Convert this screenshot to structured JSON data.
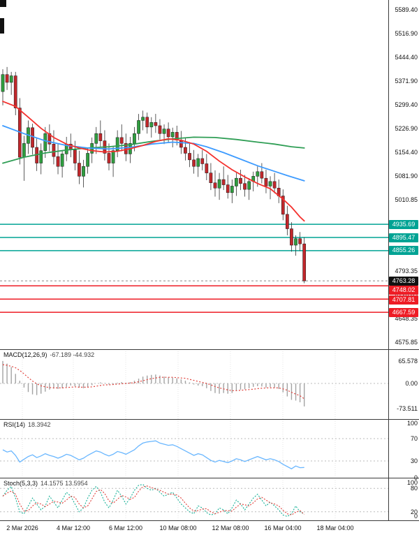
{
  "colors": {
    "bull": "#2f9e3f",
    "bear": "#c1272b",
    "wick": "#333333",
    "ma_fast": "#f4312e",
    "ma_mid": "#3d9bff",
    "ma_slow": "#2f9e55",
    "resistance": "#00a394",
    "support": "#ee1c25",
    "current": "#111111",
    "macd_hist": "#a3a3a3",
    "macd_signal": "#e0403a",
    "rsi": "#6ab7ff",
    "stoch_k": "#17b198",
    "stoch_d": "#e0403a"
  },
  "chart_data": {
    "type": "candlestick",
    "x_labels": [
      "2 Mar 2026",
      "4 Mar 12:00",
      "6 Mar 12:00",
      "10 Mar 08:00",
      "12 Mar 08:00",
      "16 Mar 04:00",
      "18 Mar 04:00"
    ],
    "price_axis_ticks": [
      "5589.40",
      "5516.90",
      "5444.40",
      "5371.90",
      "5299.40",
      "5226.90",
      "5154.40",
      "5081.90",
      "5010.85",
      "4793.35",
      "4720.85",
      "4648.35",
      "4575.85"
    ],
    "price_range": [
      4555,
      5619
    ],
    "current_price": 4763.28,
    "levels": [
      {
        "label": "4935.69",
        "price": 4935.69,
        "kind": "resistance"
      },
      {
        "label": "4895.47",
        "price": 4895.47,
        "kind": "resistance"
      },
      {
        "label": "4855.26",
        "price": 4855.26,
        "kind": "resistance"
      },
      {
        "label": "4763.28",
        "price": 4763.28,
        "kind": "current"
      },
      {
        "label": "4748.02",
        "price": 4748.02,
        "kind": "support"
      },
      {
        "label": "4707.81",
        "price": 4707.81,
        "kind": "support"
      },
      {
        "label": "4667.59",
        "price": 4667.59,
        "kind": "support"
      }
    ],
    "candles": [
      [
        5340,
        5408,
        5298,
        5392
      ],
      [
        5392,
        5415,
        5345,
        5368
      ],
      [
        5368,
        5400,
        5330,
        5388
      ],
      [
        5388,
        5400,
        5268,
        5290
      ],
      [
        5290,
        5320,
        5118,
        5140
      ],
      [
        5140,
        5205,
        5068,
        5182
      ],
      [
        5182,
        5252,
        5150,
        5230
      ],
      [
        5230,
        5242,
        5148,
        5170
      ],
      [
        5170,
        5200,
        5098,
        5122
      ],
      [
        5122,
        5182,
        5088,
        5160
      ],
      [
        5160,
        5232,
        5138,
        5212
      ],
      [
        5212,
        5240,
        5158,
        5180
      ],
      [
        5180,
        5222,
        5118,
        5142
      ],
      [
        5142,
        5180,
        5088,
        5112
      ],
      [
        5112,
        5160,
        5078,
        5150
      ],
      [
        5150,
        5202,
        5128,
        5180
      ],
      [
        5180,
        5212,
        5140,
        5162
      ],
      [
        5162,
        5190,
        5100,
        5122
      ],
      [
        5122,
        5160,
        5058,
        5082
      ],
      [
        5082,
        5132,
        5048,
        5112
      ],
      [
        5112,
        5170,
        5090,
        5152
      ],
      [
        5152,
        5200,
        5122,
        5182
      ],
      [
        5182,
        5232,
        5150,
        5212
      ],
      [
        5212,
        5252,
        5170,
        5190
      ],
      [
        5190,
        5222,
        5130,
        5152
      ],
      [
        5152,
        5182,
        5100,
        5122
      ],
      [
        5122,
        5172,
        5080,
        5160
      ],
      [
        5160,
        5222,
        5140,
        5200
      ],
      [
        5200,
        5240,
        5158,
        5182
      ],
      [
        5182,
        5212,
        5128,
        5150
      ],
      [
        5150,
        5202,
        5122,
        5182
      ],
      [
        5182,
        5232,
        5158,
        5212
      ],
      [
        5212,
        5272,
        5192,
        5252
      ],
      [
        5252,
        5282,
        5222,
        5262
      ],
      [
        5262,
        5276,
        5212,
        5232
      ],
      [
        5232,
        5262,
        5200,
        5246
      ],
      [
        5246,
        5272,
        5214,
        5236
      ],
      [
        5236,
        5256,
        5194,
        5212
      ],
      [
        5212,
        5240,
        5180,
        5226
      ],
      [
        5226,
        5246,
        5186,
        5202
      ],
      [
        5202,
        5230,
        5170,
        5216
      ],
      [
        5216,
        5236,
        5176,
        5192
      ],
      [
        5192,
        5220,
        5150,
        5170
      ],
      [
        5170,
        5200,
        5130,
        5152
      ],
      [
        5152,
        5186,
        5110,
        5132
      ],
      [
        5132,
        5162,
        5090,
        5112
      ],
      [
        5112,
        5150,
        5080,
        5136
      ],
      [
        5136,
        5162,
        5100,
        5120
      ],
      [
        5120,
        5150,
        5070,
        5092
      ],
      [
        5092,
        5122,
        5040,
        5062
      ],
      [
        5062,
        5100,
        5020,
        5046
      ],
      [
        5046,
        5092,
        5010,
        5072
      ],
      [
        5072,
        5112,
        5040,
        5056
      ],
      [
        5056,
        5086,
        5014,
        5032
      ],
      [
        5032,
        5072,
        5000,
        5052
      ],
      [
        5052,
        5092,
        5022,
        5076
      ],
      [
        5076,
        5102,
        5040,
        5060
      ],
      [
        5060,
        5086,
        5020,
        5042
      ],
      [
        5042,
        5076,
        5010,
        5066
      ],
      [
        5066,
        5096,
        5036,
        5082
      ],
      [
        5082,
        5112,
        5050,
        5096
      ],
      [
        5096,
        5122,
        5060,
        5076
      ],
      [
        5076,
        5102,
        5030,
        5052
      ],
      [
        5052,
        5082,
        5012,
        5066
      ],
      [
        5066,
        5092,
        5030,
        5046
      ],
      [
        5046,
        5072,
        5000,
        5022
      ],
      [
        5022,
        5042,
        4948,
        4966
      ],
      [
        4966,
        4992,
        4902,
        4922
      ],
      [
        4922,
        4942,
        4852,
        4872
      ],
      [
        4872,
        4902,
        4840,
        4892
      ],
      [
        4892,
        4912,
        4854,
        4876
      ],
      [
        4876,
        4896,
        4756,
        4763.28
      ]
    ],
    "ma_fast": [
      [
        0,
        5310
      ],
      [
        3,
        5295
      ],
      [
        6,
        5262
      ],
      [
        9,
        5228
      ],
      [
        12,
        5200
      ],
      [
        15,
        5180
      ],
      [
        18,
        5168
      ],
      [
        21,
        5160
      ],
      [
        24,
        5156
      ],
      [
        27,
        5158
      ],
      [
        30,
        5166
      ],
      [
        33,
        5176
      ],
      [
        36,
        5188
      ],
      [
        39,
        5196
      ],
      [
        42,
        5192
      ],
      [
        45,
        5180
      ],
      [
        48,
        5158
      ],
      [
        51,
        5128
      ],
      [
        54,
        5102
      ],
      [
        57,
        5080
      ],
      [
        60,
        5060
      ],
      [
        63,
        5044
      ],
      [
        66,
        5012
      ],
      [
        68,
        4988
      ],
      [
        70,
        4958
      ],
      [
        71,
        4946
      ]
    ],
    "ma_mid": [
      [
        0,
        5236
      ],
      [
        5,
        5212
      ],
      [
        10,
        5190
      ],
      [
        15,
        5176
      ],
      [
        20,
        5168
      ],
      [
        25,
        5165
      ],
      [
        30,
        5170
      ],
      [
        35,
        5180
      ],
      [
        40,
        5186
      ],
      [
        45,
        5182
      ],
      [
        48,
        5172
      ],
      [
        52,
        5154
      ],
      [
        56,
        5134
      ],
      [
        60,
        5114
      ],
      [
        64,
        5097
      ],
      [
        67,
        5084
      ],
      [
        70,
        5072
      ],
      [
        71,
        5068
      ]
    ],
    "ma_slow": [
      [
        0,
        5122
      ],
      [
        5,
        5140
      ],
      [
        10,
        5153
      ],
      [
        15,
        5162
      ],
      [
        20,
        5168
      ],
      [
        25,
        5172
      ],
      [
        30,
        5178
      ],
      [
        35,
        5188
      ],
      [
        40,
        5196
      ],
      [
        45,
        5201
      ],
      [
        50,
        5200
      ],
      [
        55,
        5194
      ],
      [
        60,
        5186
      ],
      [
        64,
        5180
      ],
      [
        68,
        5172
      ],
      [
        71,
        5168
      ]
    ],
    "macd": {
      "name": "MACD(12,26,9)",
      "values": "-67.189 -44.932",
      "axis_labels": [
        "65.578",
        "0.00",
        "-73.511"
      ],
      "axis_values": [
        65.578,
        0,
        -73.511
      ],
      "guides": [
        0
      ],
      "histogram": [
        65.6,
        58,
        48,
        28,
        8,
        -12,
        -25,
        -32,
        -34,
        -30,
        -24,
        -18,
        -15,
        -16,
        -14,
        -10,
        -6,
        -8,
        -12,
        -14,
        -10,
        -5,
        0,
        3,
        1,
        -3,
        -2,
        2,
        4,
        2,
        4,
        8,
        14,
        20,
        23,
        25,
        26,
        23,
        20,
        18,
        17,
        15,
        12,
        8,
        3,
        -3,
        -6,
        -8,
        -14,
        -22,
        -28,
        -30,
        -28,
        -30,
        -28,
        -22,
        -18,
        -17,
        -14,
        -10,
        -8,
        -9,
        -12,
        -11,
        -12,
        -16,
        -26,
        -38,
        -48,
        -50,
        -55,
        -67.2
      ],
      "signal": [
        55,
        53,
        50,
        46,
        38,
        28,
        17,
        7,
        -1,
        -7,
        -10,
        -12,
        -13,
        -13,
        -13,
        -12,
        -11,
        -10,
        -11,
        -11,
        -11,
        -10,
        -8,
        -6,
        -4,
        -4,
        -3,
        -2,
        -1,
        0,
        1,
        2,
        5,
        8,
        11,
        14,
        16,
        18,
        18,
        18,
        18,
        17,
        16,
        15,
        12,
        9,
        6,
        3,
        0,
        -4,
        -9,
        -13,
        -16,
        -19,
        -21,
        -21,
        -20,
        -19,
        -18,
        -17,
        -15,
        -14,
        -13,
        -13,
        -13,
        -13,
        -16,
        -20,
        -26,
        -31,
        -36,
        -44.9
      ]
    },
    "rsi": {
      "name": "RSI(14)",
      "values": "18.3942",
      "axis_labels": [
        "100",
        "70",
        "30",
        "0"
      ],
      "axis_values": [
        100,
        70,
        30,
        0
      ],
      "guides": [
        70,
        30
      ],
      "line": [
        50,
        46,
        48,
        40,
        28,
        33,
        38,
        41,
        36,
        39,
        43,
        40,
        38,
        35,
        38,
        42,
        40,
        36,
        32,
        35,
        40,
        44,
        48,
        46,
        42,
        39,
        42,
        47,
        45,
        42,
        46,
        50,
        57,
        62,
        64,
        65,
        66,
        62,
        60,
        58,
        59,
        56,
        52,
        48,
        44,
        40,
        43,
        41,
        36,
        31,
        28,
        31,
        29,
        27,
        30,
        34,
        32,
        29,
        32,
        35,
        38,
        35,
        32,
        34,
        32,
        29,
        24,
        20,
        16,
        21,
        18,
        18.4
      ]
    },
    "stoch": {
      "name": "Stoch(5,3,3)",
      "values": "14.1575 13.5954",
      "axis_labels": [
        "100",
        "80",
        "20",
        "0"
      ],
      "axis_values": [
        100,
        80,
        20,
        0
      ],
      "guides": [
        80,
        20
      ],
      "k": [
        60,
        75,
        85,
        55,
        20,
        15,
        35,
        55,
        40,
        25,
        35,
        60,
        45,
        30,
        50,
        70,
        60,
        40,
        20,
        30,
        55,
        75,
        85,
        70,
        45,
        30,
        50,
        75,
        60,
        40,
        55,
        75,
        88,
        90,
        80,
        75,
        80,
        70,
        60,
        65,
        70,
        55,
        40,
        30,
        20,
        15,
        35,
        30,
        18,
        12,
        15,
        30,
        25,
        15,
        30,
        50,
        40,
        25,
        40,
        55,
        65,
        50,
        35,
        45,
        35,
        25,
        12,
        8,
        15,
        35,
        20,
        14.2
      ],
      "d": [
        60,
        68,
        73,
        65,
        40,
        22,
        23,
        35,
        43,
        40,
        33,
        40,
        47,
        45,
        42,
        50,
        60,
        57,
        40,
        30,
        35,
        53,
        72,
        77,
        67,
        48,
        42,
        52,
        62,
        58,
        52,
        57,
        73,
        84,
        86,
        82,
        78,
        75,
        70,
        65,
        65,
        63,
        55,
        42,
        30,
        22,
        23,
        27,
        28,
        20,
        15,
        19,
        23,
        23,
        22,
        32,
        40,
        38,
        35,
        43,
        53,
        57,
        50,
        43,
        40,
        35,
        24,
        15,
        12,
        19,
        23,
        13.6
      ]
    }
  }
}
